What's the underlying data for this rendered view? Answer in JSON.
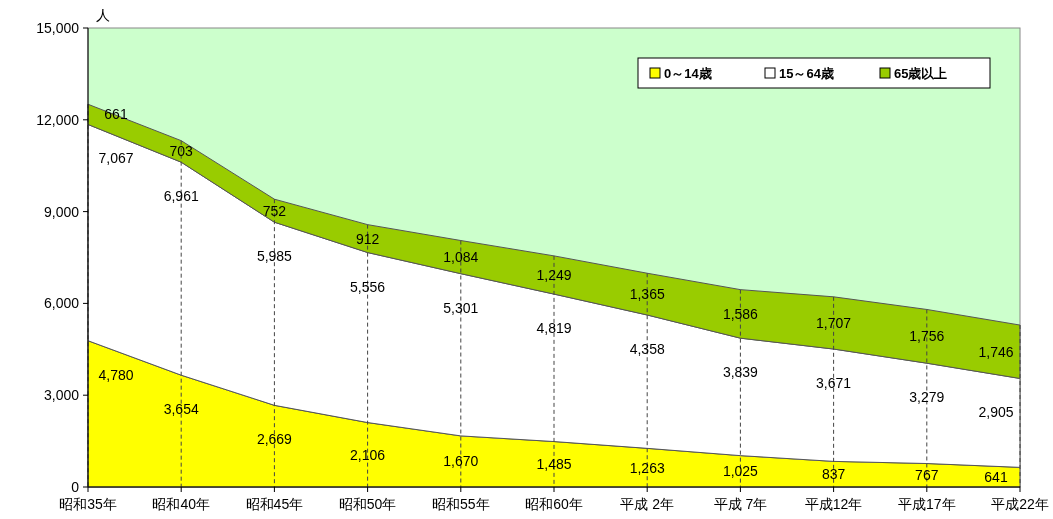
{
  "chart_data": {
    "type": "area",
    "stacked": true,
    "ylabel": "人",
    "categories": [
      "昭和35年",
      "昭和40年",
      "昭和45年",
      "昭和50年",
      "昭和55年",
      "昭和60年",
      "平成 2年",
      "平成 7年",
      "平成12年",
      "平成17年",
      "平成22年"
    ],
    "series": [
      {
        "name": "0～14歳",
        "color": "#ffff00",
        "values": [
          4780,
          3654,
          2669,
          2106,
          1670,
          1485,
          1263,
          1025,
          837,
          767,
          641
        ],
        "value_labels": [
          "4,780",
          "3,654",
          "2,669",
          "2,106",
          "1,670",
          "1,485",
          "1,263",
          "1,025",
          "837",
          "767",
          "641"
        ]
      },
      {
        "name": "15～64歳",
        "color": "#ffffff",
        "values": [
          7067,
          6961,
          5985,
          5556,
          5301,
          4819,
          4358,
          3839,
          3671,
          3279,
          2905
        ],
        "value_labels": [
          "7,067",
          "6,961",
          "5,985",
          "5,556",
          "5,301",
          "4,819",
          "4,358",
          "3,839",
          "3,671",
          "3,279",
          "2,905"
        ]
      },
      {
        "name": "65歳以上",
        "color": "#99cc00",
        "values": [
          661,
          703,
          752,
          912,
          1084,
          1249,
          1365,
          1586,
          1707,
          1756,
          1746
        ],
        "value_labels": [
          "661",
          "703",
          "752",
          "912",
          "1,084",
          "1,249",
          "1,365",
          "1,586",
          "1,707",
          "1,756",
          "1,746"
        ]
      }
    ],
    "ylim": [
      0,
      15000
    ],
    "yticks": [
      {
        "value": 0,
        "label": "0"
      },
      {
        "value": 3000,
        "label": "3,000"
      },
      {
        "value": 6000,
        "label": "6,000"
      },
      {
        "value": 9000,
        "label": "9,000"
      },
      {
        "value": 12000,
        "label": "12,000"
      },
      {
        "value": 15000,
        "label": "15,000"
      }
    ],
    "grid": "x",
    "line_style": "dashed",
    "legend": "top right"
  }
}
